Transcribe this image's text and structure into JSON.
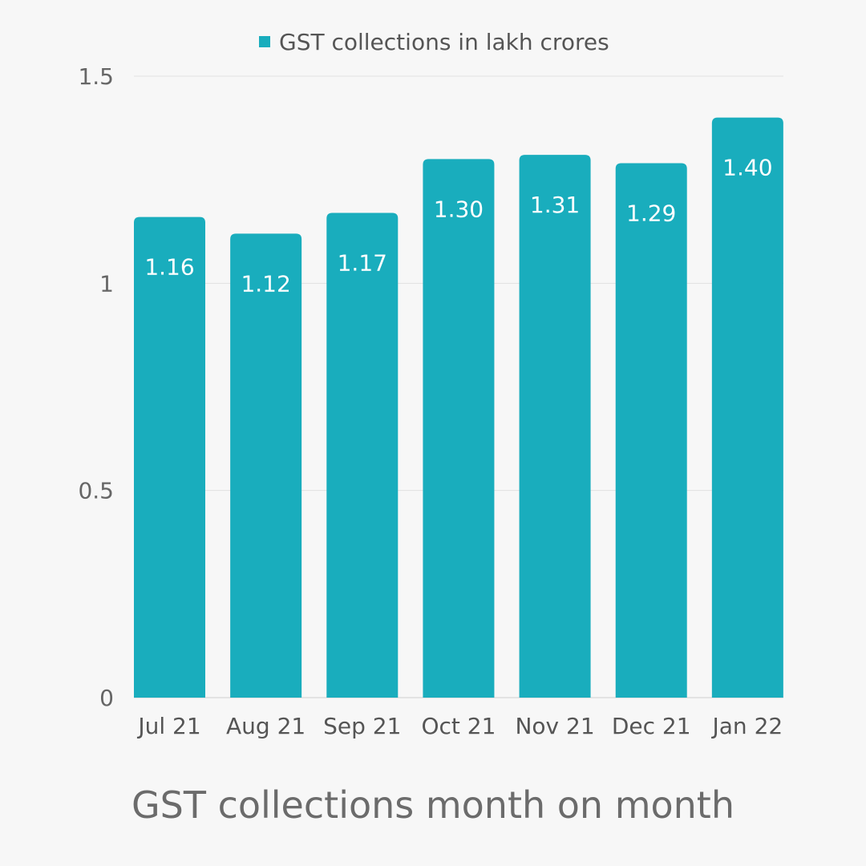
{
  "chart_data": {
    "type": "bar",
    "title": "GST collections month on month",
    "xlabel": "",
    "ylabel": "",
    "categories": [
      "Jul 21",
      "Aug 21",
      "Sep 21",
      "Oct 21",
      "Nov 21",
      "Dec 21",
      "Jan 22"
    ],
    "series": [
      {
        "name": "GST collections in lakh crores",
        "values": [
          1.16,
          1.12,
          1.17,
          1.3,
          1.31,
          1.29,
          1.4
        ],
        "data_labels": [
          "1.16",
          "1.12",
          "1.17",
          "1.30",
          "1.31",
          "1.29",
          "1.40"
        ],
        "color": "#19adbd"
      }
    ],
    "ylim": [
      0,
      1.5
    ],
    "yticks": [
      0,
      0.5,
      1,
      1.5
    ],
    "ytick_labels": [
      "0",
      "0.5",
      "1",
      "1.5"
    ],
    "grid": true,
    "legend_position": "top-center"
  }
}
